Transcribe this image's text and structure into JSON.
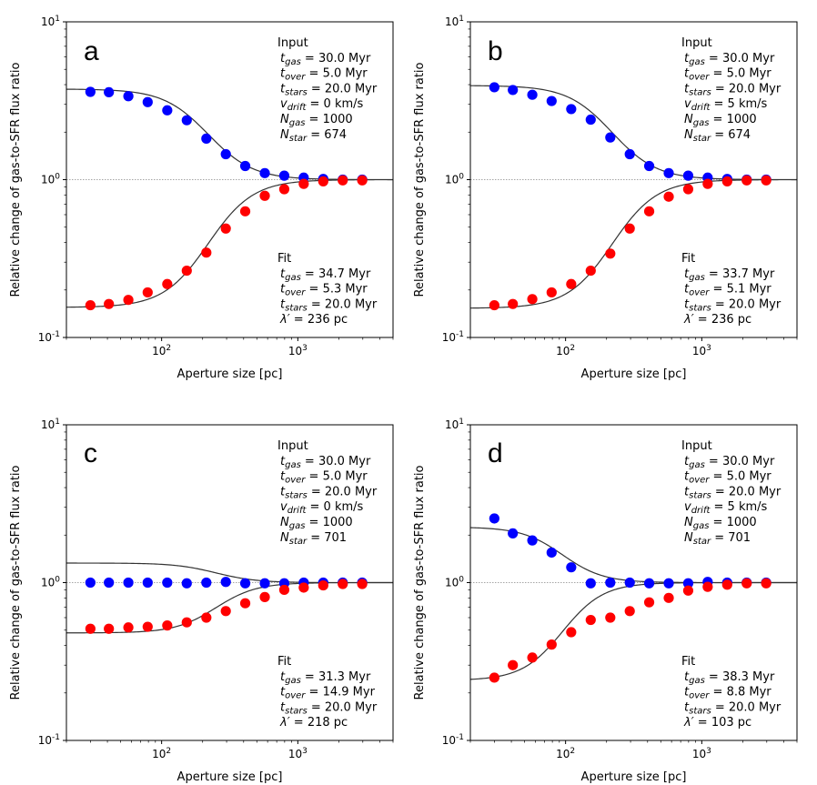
{
  "chart_data": [
    {
      "type": "scatter",
      "panel_label": "a",
      "xlabel": "Aperture size [pc]",
      "ylabel": "Relative change of gas-to-SFR flux ratio",
      "xscale": "log",
      "yscale": "log",
      "xlim": [
        20,
        5000
      ],
      "ylim": [
        0.1,
        10
      ],
      "x_ticks": [
        "10^2",
        "10^3"
      ],
      "y_ticks": [
        "10^-1",
        "10^0",
        "10^1"
      ],
      "x": [
        30,
        41,
        57,
        79,
        110,
        153,
        213,
        296,
        411,
        572,
        795,
        1105,
        1537,
        2137,
        2970
      ],
      "series": [
        {
          "name": "gas",
          "color": "#0000ff",
          "values": [
            3.6,
            3.58,
            3.38,
            3.1,
            2.75,
            2.38,
            1.82,
            1.45,
            1.22,
            1.1,
            1.06,
            1.03,
            1.01,
            1.0,
            1.0
          ]
        },
        {
          "name": "stars",
          "color": "#ff0000",
          "values": [
            0.16,
            0.163,
            0.173,
            0.193,
            0.218,
            0.265,
            0.345,
            0.49,
            0.63,
            0.79,
            0.87,
            0.94,
            0.975,
            0.99,
            0.99
          ]
        }
      ],
      "fit_curves": {
        "upper_start": 3.75,
        "lower_start": 0.155,
        "center": 220,
        "width": 0.33
      },
      "input_title": "Input",
      "input_lines": [
        {
          "sym": "t",
          "sub": "gas",
          "text": "  = 30.0 Myr"
        },
        {
          "sym": "t",
          "sub": "over",
          "text": " = 5.0 Myr"
        },
        {
          "sym": "t",
          "sub": "stars",
          "text": " = 20.0 Myr"
        },
        {
          "sym": "v",
          "sub": "drift",
          "text": " = 0 km/s"
        },
        {
          "sym": "N",
          "sub": "gas",
          "text": "  = 1000"
        },
        {
          "sym": "N",
          "sub": "star",
          "text": " = 674"
        }
      ],
      "fit_title": "Fit",
      "fit_lines": [
        {
          "sym": "t",
          "sub": "gas",
          "text": "  = 34.7 Myr"
        },
        {
          "sym": "t",
          "sub": "over",
          "text": " = 5.3 Myr"
        },
        {
          "sym": "t",
          "sub": "stars",
          "text": " = 20.0 Myr"
        },
        {
          "sym": "λ′",
          "sub": "",
          "text": " = 236 pc"
        }
      ]
    },
    {
      "type": "scatter",
      "panel_label": "b",
      "xlabel": "Aperture size [pc]",
      "ylabel": "Relative change of gas-to-SFR flux ratio",
      "xscale": "log",
      "yscale": "log",
      "xlim": [
        20,
        5000
      ],
      "ylim": [
        0.1,
        10
      ],
      "x_ticks": [
        "10^2",
        "10^3"
      ],
      "y_ticks": [
        "10^-1",
        "10^0",
        "10^1"
      ],
      "x": [
        30,
        41,
        57,
        79,
        110,
        153,
        213,
        296,
        411,
        572,
        795,
        1105,
        1537,
        2137,
        2970
      ],
      "series": [
        {
          "name": "gas",
          "color": "#0000ff",
          "values": [
            3.85,
            3.7,
            3.45,
            3.15,
            2.8,
            2.4,
            1.85,
            1.45,
            1.22,
            1.1,
            1.06,
            1.03,
            1.01,
            1.0,
            1.0
          ]
        },
        {
          "name": "stars",
          "color": "#ff0000",
          "values": [
            0.16,
            0.163,
            0.175,
            0.193,
            0.218,
            0.265,
            0.34,
            0.49,
            0.63,
            0.78,
            0.87,
            0.94,
            0.975,
            0.99,
            0.99
          ]
        }
      ],
      "fit_curves": {
        "upper_start": 3.95,
        "lower_start": 0.153,
        "center": 220,
        "width": 0.33
      },
      "input_title": "Input",
      "input_lines": [
        {
          "sym": "t",
          "sub": "gas",
          "text": "  = 30.0 Myr"
        },
        {
          "sym": "t",
          "sub": "over",
          "text": " = 5.0 Myr"
        },
        {
          "sym": "t",
          "sub": "stars",
          "text": " = 20.0 Myr"
        },
        {
          "sym": "v",
          "sub": "drift",
          "text": " = 5 km/s"
        },
        {
          "sym": "N",
          "sub": "gas",
          "text": "  = 1000"
        },
        {
          "sym": "N",
          "sub": "star",
          "text": " = 674"
        }
      ],
      "fit_title": "Fit",
      "fit_lines": [
        {
          "sym": "t",
          "sub": "gas",
          "text": "  = 33.7 Myr"
        },
        {
          "sym": "t",
          "sub": "over",
          "text": " = 5.1 Myr"
        },
        {
          "sym": "t",
          "sub": "stars",
          "text": " = 20.0 Myr"
        },
        {
          "sym": "λ′",
          "sub": "",
          "text": " = 236 pc"
        }
      ]
    },
    {
      "type": "scatter",
      "panel_label": "c",
      "xlabel": "Aperture size [pc]",
      "ylabel": "Relative change of gas-to-SFR flux ratio",
      "xscale": "log",
      "yscale": "log",
      "xlim": [
        20,
        5000
      ],
      "ylim": [
        0.1,
        10
      ],
      "x_ticks": [
        "10^2",
        "10^3"
      ],
      "y_ticks": [
        "10^-1",
        "10^0",
        "10^1"
      ],
      "x": [
        30,
        41,
        57,
        79,
        110,
        153,
        213,
        296,
        411,
        572,
        795,
        1105,
        1537,
        2137,
        2970
      ],
      "series": [
        {
          "name": "gas",
          "color": "#0000ff",
          "values": [
            1.0,
            1.0,
            1.0,
            1.0,
            1.0,
            0.99,
            1.0,
            1.01,
            0.99,
            0.99,
            0.99,
            1.0,
            1.0,
            1.0,
            1.0
          ]
        },
        {
          "name": "stars",
          "color": "#ff0000",
          "values": [
            0.51,
            0.51,
            0.52,
            0.525,
            0.535,
            0.56,
            0.6,
            0.66,
            0.74,
            0.81,
            0.9,
            0.93,
            0.96,
            0.98,
            0.98
          ]
        }
      ],
      "fit_curves": {
        "upper_start": 1.33,
        "lower_start": 0.48,
        "center": 250,
        "width": 0.3
      },
      "input_title": "Input",
      "input_lines": [
        {
          "sym": "t",
          "sub": "gas",
          "text": "  = 30.0 Myr"
        },
        {
          "sym": "t",
          "sub": "over",
          "text": " = 5.0 Myr"
        },
        {
          "sym": "t",
          "sub": "stars",
          "text": " = 20.0 Myr"
        },
        {
          "sym": "v",
          "sub": "drift",
          "text": " = 0 km/s"
        },
        {
          "sym": "N",
          "sub": "gas",
          "text": "  = 1000"
        },
        {
          "sym": "N",
          "sub": "star",
          "text": " = 701"
        }
      ],
      "fit_title": "Fit",
      "fit_lines": [
        {
          "sym": "t",
          "sub": "gas",
          "text": "  = 31.3 Myr"
        },
        {
          "sym": "t",
          "sub": "over",
          "text": " = 14.9 Myr"
        },
        {
          "sym": "t",
          "sub": "stars",
          "text": " = 20.0 Myr"
        },
        {
          "sym": "λ′",
          "sub": "",
          "text": " = 218 pc"
        }
      ]
    },
    {
      "type": "scatter",
      "panel_label": "d",
      "xlabel": "Aperture size [pc]",
      "ylabel": "Relative change of gas-to-SFR flux ratio",
      "xscale": "log",
      "yscale": "log",
      "xlim": [
        20,
        5000
      ],
      "ylim": [
        0.1,
        10
      ],
      "x_ticks": [
        "10^2",
        "10^3"
      ],
      "y_ticks": [
        "10^-1",
        "10^0",
        "10^1"
      ],
      "x": [
        30,
        41,
        57,
        79,
        110,
        153,
        213,
        296,
        411,
        572,
        795,
        1105,
        1537,
        2137,
        2970
      ],
      "series": [
        {
          "name": "gas",
          "color": "#0000ff",
          "values": [
            2.55,
            2.05,
            1.85,
            1.55,
            1.25,
            0.99,
            1.0,
            1.0,
            0.99,
            0.99,
            0.99,
            1.01,
            1.0,
            1.0,
            1.0
          ]
        },
        {
          "name": "stars",
          "color": "#ff0000",
          "values": [
            0.25,
            0.3,
            0.335,
            0.405,
            0.485,
            0.58,
            0.6,
            0.66,
            0.75,
            0.8,
            0.89,
            0.94,
            0.97,
            0.99,
            0.99
          ]
        }
      ],
      "fit_curves": {
        "upper_start": 2.25,
        "lower_start": 0.24,
        "center": 95,
        "width": 0.3
      },
      "input_title": "Input",
      "input_lines": [
        {
          "sym": "t",
          "sub": "gas",
          "text": "  = 30.0 Myr"
        },
        {
          "sym": "t",
          "sub": "over",
          "text": " = 5.0 Myr"
        },
        {
          "sym": "t",
          "sub": "stars",
          "text": " = 20.0 Myr"
        },
        {
          "sym": "v",
          "sub": "drift",
          "text": " = 5 km/s"
        },
        {
          "sym": "N",
          "sub": "gas",
          "text": "  = 1000"
        },
        {
          "sym": "N",
          "sub": "star",
          "text": " = 701"
        }
      ],
      "fit_title": "Fit",
      "fit_lines": [
        {
          "sym": "t",
          "sub": "gas",
          "text": "  = 38.3 Myr"
        },
        {
          "sym": "t",
          "sub": "over",
          "text": " = 8.8 Myr"
        },
        {
          "sym": "t",
          "sub": "stars",
          "text": " = 20.0 Myr"
        },
        {
          "sym": "λ′",
          "sub": "",
          "text": " = 103 pc"
        }
      ]
    }
  ]
}
